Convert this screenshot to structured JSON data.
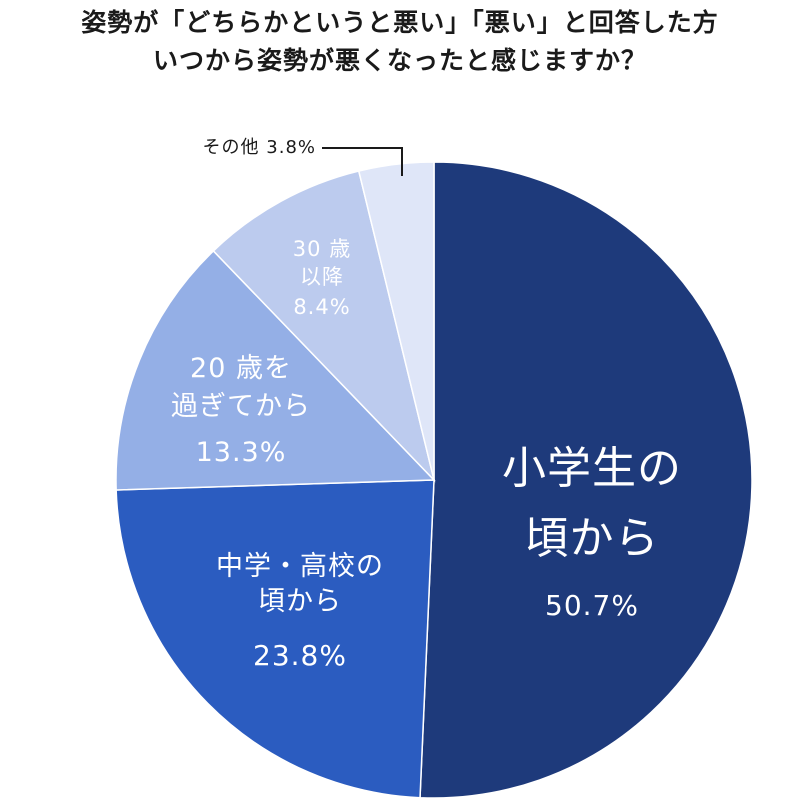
{
  "title": {
    "line1": "姿勢が「どちらかというと悪い」「悪い」と回答した方",
    "line2": "いつから姿勢が悪くなったと感じますか？"
  },
  "chart_data": {
    "type": "pie",
    "categories": [
      "小学生の頃から",
      "中学・高校の頃から",
      "20歳を過ぎてから",
      "30歳以降",
      "その他"
    ],
    "values": [
      50.7,
      23.8,
      13.3,
      8.4,
      3.8
    ],
    "colors": [
      "#1e3a7b",
      "#2b5cc0",
      "#94afe6",
      "#bccbee",
      "#dfe6f8"
    ],
    "label_lines": [
      [
        "小学生の",
        "頃から"
      ],
      [
        "中学・高校の",
        "頃から"
      ],
      [
        "20 歳を",
        "過ぎてから"
      ],
      [
        "30 歳",
        "以降"
      ],
      [
        "その他"
      ]
    ],
    "value_labels": [
      "50.7%",
      "23.8%",
      "13.3%",
      "8.4%",
      "3.8%"
    ]
  }
}
